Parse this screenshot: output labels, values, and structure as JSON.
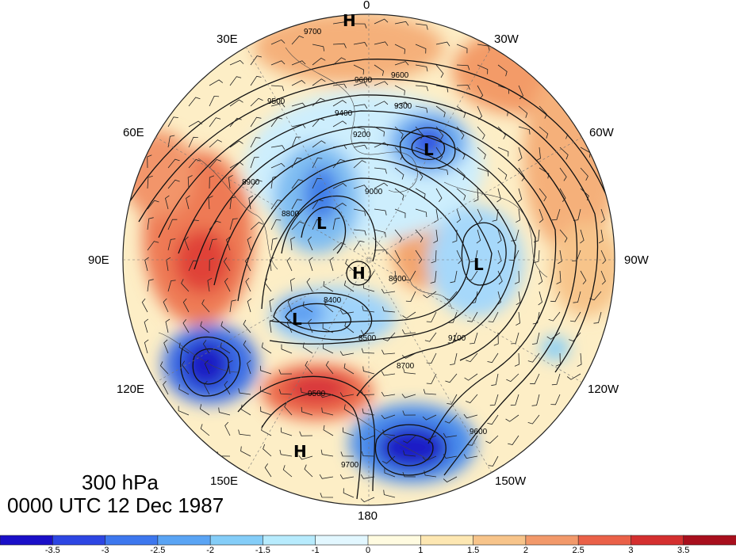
{
  "map": {
    "projection": "north-polar-stereographic",
    "level_label": "300 hPa",
    "time_label": "0000 UTC 12 Dec 1987",
    "longitude_labels": [
      "0",
      "30W",
      "60W",
      "90W",
      "120W",
      "150W",
      "180",
      "150E",
      "120E",
      "90E",
      "60E",
      "30E"
    ],
    "height_contour_labels": [
      "9700",
      "9600",
      "9600",
      "9500",
      "9400",
      "9300",
      "9200",
      "9100",
      "9000",
      "8900",
      "8800",
      "8700",
      "8600",
      "8500",
      "8400",
      "9500",
      "9600",
      "9700"
    ],
    "centers": [
      {
        "mark": "H",
        "type": "high"
      },
      {
        "mark": "L",
        "type": "low"
      },
      {
        "mark": "L",
        "type": "low"
      },
      {
        "mark": "L",
        "type": "low"
      },
      {
        "mark": "H",
        "type": "center-high"
      },
      {
        "mark": "L",
        "type": "low"
      },
      {
        "mark": "H",
        "type": "high"
      }
    ],
    "shading_variable": "standardized anomaly",
    "colors": {
      "negative_strong": "#1e1ecf",
      "negative_weak": "#c8f0ff",
      "neutral": "#fff6d8",
      "positive_weak": "#f5b47a",
      "positive_strong": "#d32a2a"
    }
  },
  "colorbar": {
    "tick_labels": [
      "-3.5",
      "-3",
      "-2.5",
      "-2",
      "-1.5",
      "-1",
      "0",
      "1",
      "1.5",
      "2",
      "2.5",
      "3",
      "3.5"
    ],
    "bin_colors": [
      "#1a0fc8",
      "#2d46e3",
      "#3d77ee",
      "#5aa4f4",
      "#84cdf8",
      "#b7ebfd",
      "#e2f7ff",
      "#fffbe0",
      "#fde7b2",
      "#f7c48a",
      "#f2996a",
      "#ea6148",
      "#d42f2f",
      "#a80f1d"
    ]
  }
}
